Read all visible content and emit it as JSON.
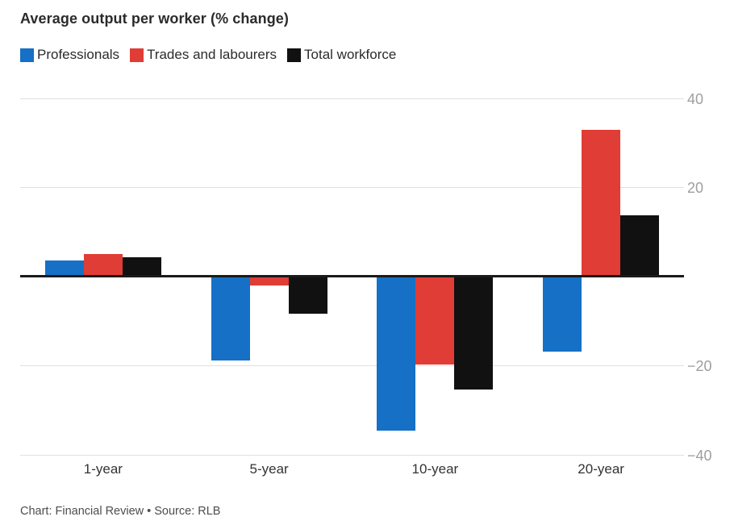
{
  "header": {
    "title": "Average output per worker (% change)"
  },
  "footer": {
    "text": "Chart: Financial Review • Source: RLB"
  },
  "chart_data": {
    "type": "bar",
    "title": "Average output per worker (% change)",
    "categories": [
      "1-year",
      "5-year",
      "10-year",
      "20-year"
    ],
    "series": [
      {
        "name": "Professionals",
        "color": "#1570C6",
        "values": [
          3.5,
          -18.9,
          -34.7,
          -17.0
        ]
      },
      {
        "name": "Trades and labourers",
        "color": "#E03D36",
        "values": [
          5.0,
          -2.1,
          -19.9,
          32.8
        ]
      },
      {
        "name": "Total workforce",
        "color": "#111111",
        "values": [
          4.3,
          -8.5,
          -25.4,
          13.7
        ]
      }
    ],
    "ylabel": "",
    "xlabel": "",
    "ylim": [
      -40,
      40
    ],
    "yticks": [
      40,
      20,
      -20,
      -40
    ],
    "ytick_labels": [
      "40",
      "20",
      "−20",
      "−40"
    ],
    "grid": "horizontal",
    "legend_position": "top",
    "zero_line": true,
    "colors": {
      "gridline": "#e0e0e0",
      "zero_line": "#1a1a1a",
      "ytick_text": "#9e9e9e",
      "xtick_text": "#333333"
    }
  }
}
